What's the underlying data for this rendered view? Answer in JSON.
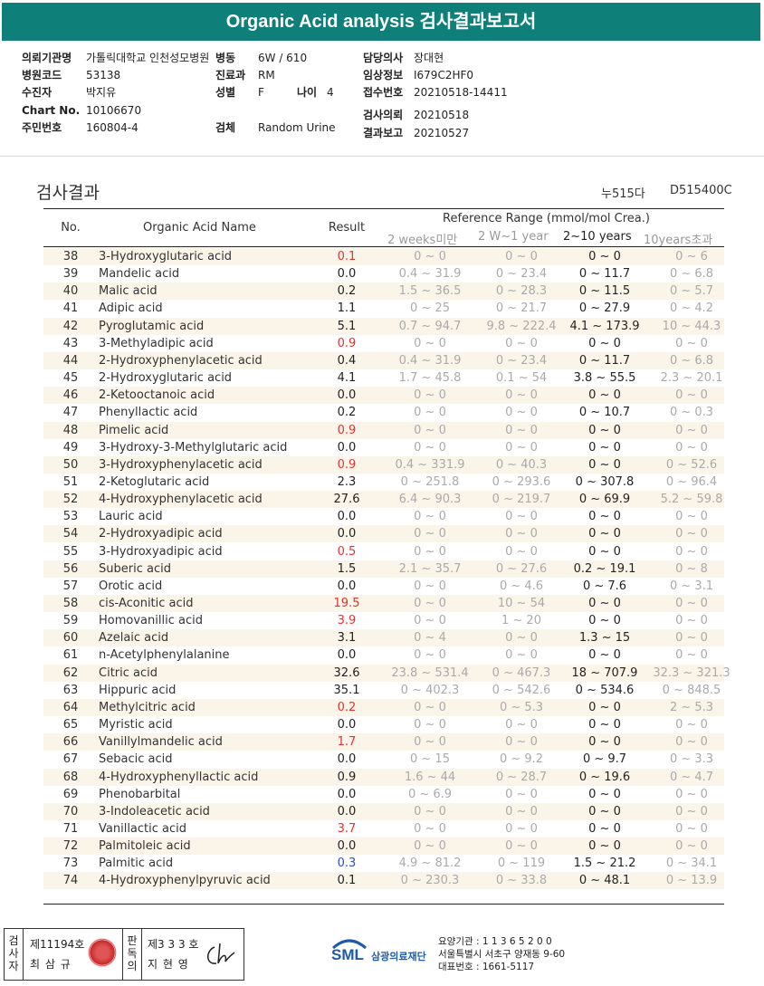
{
  "title": "Organic Acid analysis 검사결과보고서",
  "patient": {
    "col1": [
      {
        "label": "의뢰기관명",
        "value": "가톨릭대학교 인천성모병원"
      },
      {
        "label": "병원코드",
        "value": "53138"
      },
      {
        "label": "수진자",
        "value": "박지유"
      },
      {
        "label": "Chart No.",
        "value": "10106670"
      },
      {
        "label": "주민번호",
        "value": "160804-4"
      }
    ],
    "col2": [
      {
        "label": "병동",
        "value": "6W / 610"
      },
      {
        "label": "진료과",
        "value": "RM"
      },
      {
        "label": "성별",
        "value": "F"
      },
      {
        "label": "검체",
        "value": "Random Urine"
      }
    ],
    "age": {
      "label": "나이",
      "value": "4"
    },
    "col3": [
      {
        "label": "담당의사",
        "value": "장대현"
      },
      {
        "label": "임상정보",
        "value": "I679C2HF0"
      },
      {
        "label": "접수번호",
        "value": "20210518-14411"
      },
      {
        "label": "검사의뢰",
        "value": "20210518"
      },
      {
        "label": "결과보고",
        "value": "20210527"
      }
    ]
  },
  "section_title": "검사결과",
  "codes": {
    "code1": "누515다",
    "code2": "D515400C"
  },
  "table_header": {
    "no": "No.",
    "name": "Organic Acid Name",
    "result": "Result",
    "ref": "Reference Range (mmol/mol Crea.)",
    "age1": "2 weeks미만",
    "age2": "2 W~1 year",
    "age3": "2~10 years",
    "age4": "10years초과"
  },
  "rows": [
    {
      "no": "38",
      "name": "3-Hydroxyglutaric acid",
      "result": "0.1",
      "flag": "red",
      "r1": "0 ~ 0",
      "r2": "0 ~ 0",
      "r3": "0 ~ 0",
      "r4": "0 ~ 6"
    },
    {
      "no": "39",
      "name": "Mandelic acid",
      "result": "0.0",
      "flag": "black",
      "r1": "0.4 ~ 31.9",
      "r2": "0 ~ 23.4",
      "r3": "0 ~ 11.7",
      "r4": "0 ~ 6.8"
    },
    {
      "no": "40",
      "name": "Malic acid",
      "result": "0.2",
      "flag": "black",
      "r1": "1.5 ~ 36.5",
      "r2": "0 ~ 28.3",
      "r3": "0 ~ 11.5",
      "r4": "0 ~ 5.7"
    },
    {
      "no": "41",
      "name": "Adipic acid",
      "result": "1.1",
      "flag": "black",
      "r1": "0 ~ 25",
      "r2": "0 ~ 21.7",
      "r3": "0 ~ 27.9",
      "r4": "0 ~ 4.2"
    },
    {
      "no": "42",
      "name": "Pyroglutamic acid",
      "result": "5.1",
      "flag": "black",
      "r1": "0.7 ~ 94.7",
      "r2": "9.8 ~ 222.4",
      "r3": "4.1 ~ 173.9",
      "r4": "10 ~ 44.3"
    },
    {
      "no": "43",
      "name": "3-Methyladipic acid",
      "result": "0.9",
      "flag": "red",
      "r1": "0 ~ 0",
      "r2": "0 ~ 0",
      "r3": "0 ~ 0",
      "r4": "0 ~ 0"
    },
    {
      "no": "44",
      "name": "2-Hydroxyphenylacetic acid",
      "result": "0.4",
      "flag": "black",
      "r1": "0.4 ~ 31.9",
      "r2": "0 ~ 23.4",
      "r3": "0 ~ 11.7",
      "r4": "0 ~ 6.8"
    },
    {
      "no": "45",
      "name": "2-Hydroxyglutaric acid",
      "result": "4.1",
      "flag": "black",
      "r1": "1.7 ~ 45.8",
      "r2": "0.1 ~ 54",
      "r3": "3.8 ~ 55.5",
      "r4": "2.3 ~ 20.1"
    },
    {
      "no": "46",
      "name": "2-Ketooctanoic acid",
      "result": "0.0",
      "flag": "black",
      "r1": "0 ~ 0",
      "r2": "0 ~ 0",
      "r3": "0 ~ 0",
      "r4": "0 ~ 0"
    },
    {
      "no": "47",
      "name": "Phenyllactic acid",
      "result": "0.2",
      "flag": "black",
      "r1": "0 ~ 0",
      "r2": "0 ~ 0",
      "r3": "0 ~ 10.7",
      "r4": "0 ~ 0.3"
    },
    {
      "no": "48",
      "name": "Pimelic acid",
      "result": "0.9",
      "flag": "red",
      "r1": "0 ~ 0",
      "r2": "0 ~ 0",
      "r3": "0 ~ 0",
      "r4": "0 ~ 0"
    },
    {
      "no": "49",
      "name": "3-Hydroxy-3-Methylglutaric acid",
      "result": "0.0",
      "flag": "black",
      "r1": "0 ~ 0",
      "r2": "0 ~ 0",
      "r3": "0 ~ 0",
      "r4": "0 ~ 0"
    },
    {
      "no": "50",
      "name": "3-Hydroxyphenylacetic acid",
      "result": "0.9",
      "flag": "red",
      "r1": "0.4 ~ 331.9",
      "r2": "0 ~ 40.3",
      "r3": "0 ~ 0",
      "r4": "0 ~ 52.6"
    },
    {
      "no": "51",
      "name": "2-Ketoglutaric acid",
      "result": "2.3",
      "flag": "black",
      "r1": "0 ~ 251.8",
      "r2": "0 ~ 293.6",
      "r3": "0 ~ 307.8",
      "r4": "0 ~ 96.4"
    },
    {
      "no": "52",
      "name": "4-Hydroxyphenylacetic acid",
      "result": "27.6",
      "flag": "black",
      "r1": "6.4 ~ 90.3",
      "r2": "0 ~ 219.7",
      "r3": "0 ~ 69.9",
      "r4": "5.2 ~ 59.8"
    },
    {
      "no": "53",
      "name": "Lauric acid",
      "result": "0.0",
      "flag": "black",
      "r1": "0 ~ 0",
      "r2": "0 ~ 0",
      "r3": "0 ~ 0",
      "r4": "0 ~ 0"
    },
    {
      "no": "54",
      "name": "2-Hydroxyadipic acid",
      "result": "0.0",
      "flag": "black",
      "r1": "0 ~ 0",
      "r2": "0 ~ 0",
      "r3": "0 ~ 0",
      "r4": "0 ~ 0"
    },
    {
      "no": "55",
      "name": "3-Hydroxyadipic acid",
      "result": "0.5",
      "flag": "red",
      "r1": "0 ~ 0",
      "r2": "0 ~ 0",
      "r3": "0 ~ 0",
      "r4": "0 ~ 0"
    },
    {
      "no": "56",
      "name": "Suberic acid",
      "result": "1.5",
      "flag": "black",
      "r1": "2.1 ~ 35.7",
      "r2": "0 ~ 27.6",
      "r3": "0.2 ~ 19.1",
      "r4": "0 ~ 8"
    },
    {
      "no": "57",
      "name": "Orotic acid",
      "result": "0.0",
      "flag": "black",
      "r1": "0 ~ 0",
      "r2": "0 ~ 4.6",
      "r3": "0 ~ 7.6",
      "r4": "0 ~ 3.1"
    },
    {
      "no": "58",
      "name": "cis-Aconitic acid",
      "result": "19.5",
      "flag": "red",
      "r1": "0 ~ 0",
      "r2": "10 ~ 54",
      "r3": "0 ~ 0",
      "r4": "0 ~ 0"
    },
    {
      "no": "59",
      "name": "Homovanillic acid",
      "result": "3.9",
      "flag": "red",
      "r1": "0 ~ 0",
      "r2": "1 ~ 20",
      "r3": "0 ~ 0",
      "r4": "0 ~ 0"
    },
    {
      "no": "60",
      "name": "Azelaic acid",
      "result": "3.1",
      "flag": "black",
      "r1": "0 ~ 4",
      "r2": "0 ~ 0",
      "r3": "1.3 ~ 15",
      "r4": "0 ~ 0"
    },
    {
      "no": "61",
      "name": "n-Acetylphenylalanine",
      "result": "0.0",
      "flag": "black",
      "r1": "0 ~ 0",
      "r2": "0 ~ 0",
      "r3": "0 ~ 0",
      "r4": "0 ~ 0"
    },
    {
      "no": "62",
      "name": "Citric acid",
      "result": "32.6",
      "flag": "black",
      "r1": "23.8 ~ 531.4",
      "r2": "0 ~ 467.3",
      "r3": "18 ~ 707.9",
      "r4": "32.3 ~ 321.3"
    },
    {
      "no": "63",
      "name": "Hippuric acid",
      "result": "35.1",
      "flag": "black",
      "r1": "0 ~ 402.3",
      "r2": "0 ~ 542.6",
      "r3": "0 ~ 534.6",
      "r4": "0 ~ 848.5"
    },
    {
      "no": "64",
      "name": "Methylcitric acid",
      "result": "0.2",
      "flag": "red",
      "r1": "0 ~ 0",
      "r2": "0 ~ 5.3",
      "r3": "0 ~ 0",
      "r4": "2 ~ 5.3"
    },
    {
      "no": "65",
      "name": "Myristic acid",
      "result": "0.0",
      "flag": "black",
      "r1": "0 ~ 0",
      "r2": "0 ~ 0",
      "r3": "0 ~ 0",
      "r4": "0 ~ 0"
    },
    {
      "no": "66",
      "name": "Vanillylmandelic acid",
      "result": "1.7",
      "flag": "red",
      "r1": "0 ~ 0",
      "r2": "0 ~ 0",
      "r3": "0 ~ 0",
      "r4": "0 ~ 0"
    },
    {
      "no": "67",
      "name": "Sebacic acid",
      "result": "0.0",
      "flag": "black",
      "r1": "0 ~ 15",
      "r2": "0 ~ 9.2",
      "r3": "0 ~ 9.7",
      "r4": "0 ~ 3.3"
    },
    {
      "no": "68",
      "name": "4-Hydroxyphenyllactic acid",
      "result": "0.9",
      "flag": "black",
      "r1": "1.6 ~ 44",
      "r2": "0 ~ 28.7",
      "r3": "0 ~ 19.6",
      "r4": "0 ~ 4.7"
    },
    {
      "no": "69",
      "name": "Phenobarbital",
      "result": "0.0",
      "flag": "black",
      "r1": "0 ~ 6.9",
      "r2": "0 ~ 0",
      "r3": "0 ~ 0",
      "r4": "0 ~ 0"
    },
    {
      "no": "70",
      "name": "3-Indoleacetic acid",
      "result": "0.0",
      "flag": "black",
      "r1": "0 ~ 0",
      "r2": "0 ~ 0",
      "r3": "0 ~ 0",
      "r4": "0 ~ 0"
    },
    {
      "no": "71",
      "name": "Vanillactic acid",
      "result": "3.7",
      "flag": "red",
      "r1": "0 ~ 0",
      "r2": "0 ~ 0",
      "r3": "0 ~ 0",
      "r4": "0 ~ 0"
    },
    {
      "no": "72",
      "name": "Palmitoleic acid",
      "result": "0.0",
      "flag": "black",
      "r1": "0 ~ 0",
      "r2": "0 ~ 0",
      "r3": "0 ~ 0",
      "r4": "0 ~ 0"
    },
    {
      "no": "73",
      "name": "Palmitic acid",
      "result": "0.3",
      "flag": "blue",
      "r1": "4.9 ~ 81.2",
      "r2": "0 ~ 119",
      "r3": "1.5 ~ 21.2",
      "r4": "0 ~ 34.1"
    },
    {
      "no": "74",
      "name": "4-Hydroxyphenylpyruvic acid",
      "result": "0.1",
      "flag": "black",
      "r1": "0 ~ 230.3",
      "r2": "0 ~ 33.8",
      "r3": "0 ~ 48.1",
      "r4": "0 ~ 13.9"
    }
  ],
  "footer": {
    "inspector_v": "검사자",
    "inspector_lic": "제11194호",
    "inspector_name": "최 삼 규",
    "reviewer_v": "판독의",
    "reviewer_lic": "제3 3 3 호",
    "reviewer_name": "지 현 영",
    "org_logo": "SML",
    "org_name": "삼광의료재단",
    "addr1": "요양기관 : 1 1 3 6 5 2 0 0",
    "addr2": "서울특별시 서초구 양재동 9-60",
    "addr3": "대표번호 : 1661-5117"
  }
}
